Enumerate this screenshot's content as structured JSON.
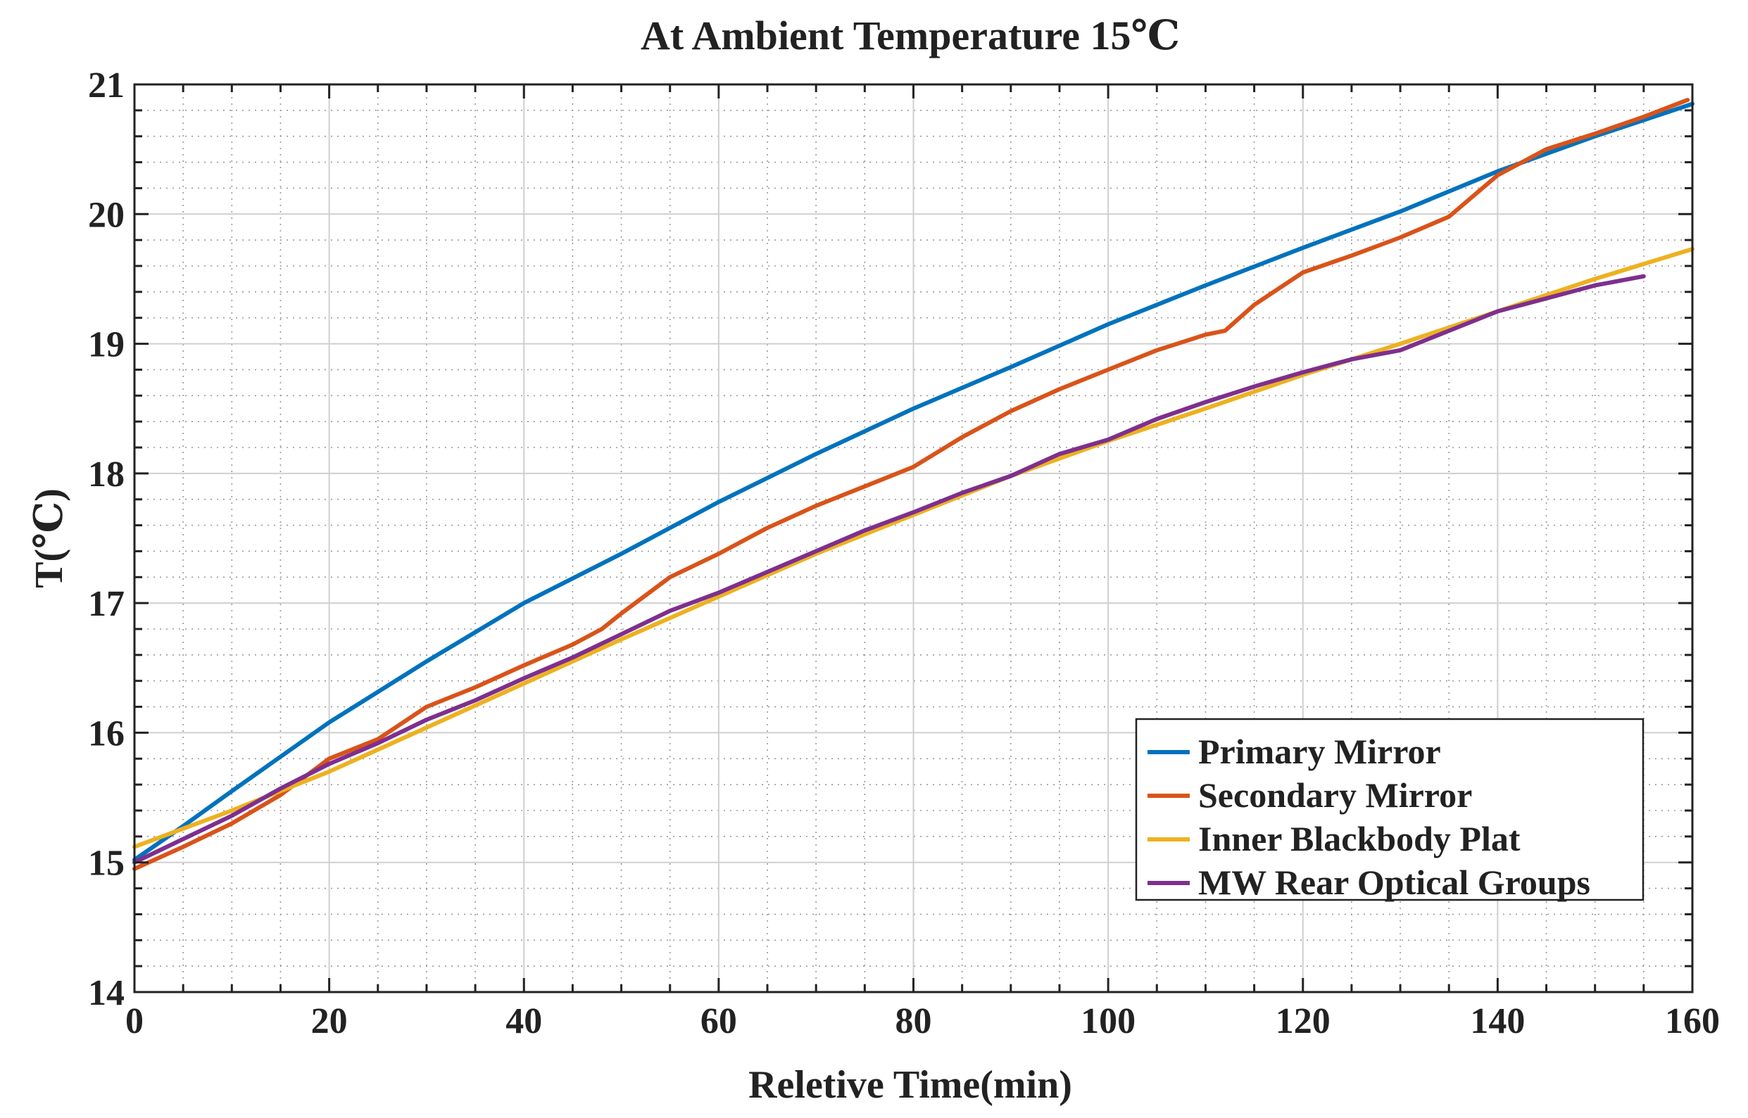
{
  "chart_data": {
    "type": "line",
    "title": "At Ambient Temperature 15℃",
    "xlabel": "Reletive Time(min)",
    "ylabel": "T(℃)",
    "xlim": [
      0,
      160
    ],
    "ylim": [
      14,
      21
    ],
    "xticks": [
      0,
      20,
      40,
      60,
      80,
      100,
      120,
      140,
      160
    ],
    "yticks": [
      14,
      15,
      16,
      17,
      18,
      19,
      20,
      21
    ],
    "x_minor_step": 5,
    "y_minor_step": 0.2,
    "grid": true,
    "legend_position": "bottom-right",
    "series": [
      {
        "name": "Primary Mirror",
        "color": "#0072BD",
        "x": [
          0,
          5,
          10,
          20,
          30,
          40,
          50,
          60,
          70,
          80,
          90,
          100,
          110,
          120,
          130,
          140,
          150,
          160
        ],
        "y": [
          15.02,
          15.28,
          15.55,
          16.08,
          16.55,
          17.0,
          17.38,
          17.78,
          18.15,
          18.5,
          18.82,
          19.15,
          19.45,
          19.74,
          20.02,
          20.33,
          20.6,
          20.85
        ]
      },
      {
        "name": "Secondary Mirror",
        "color": "#D95319",
        "x": [
          0,
          5,
          10,
          15,
          20,
          25,
          30,
          35,
          40,
          45,
          48,
          50,
          55,
          60,
          65,
          70,
          75,
          80,
          85,
          90,
          95,
          100,
          105,
          110,
          112,
          115,
          120,
          125,
          130,
          135,
          140,
          145,
          150,
          155,
          159.5
        ],
        "y": [
          14.95,
          15.12,
          15.3,
          15.52,
          15.8,
          15.95,
          16.2,
          16.35,
          16.52,
          16.68,
          16.8,
          16.92,
          17.2,
          17.38,
          17.58,
          17.75,
          17.9,
          18.05,
          18.28,
          18.48,
          18.65,
          18.8,
          18.95,
          19.07,
          19.1,
          19.3,
          19.55,
          19.68,
          19.82,
          19.98,
          20.3,
          20.5,
          20.62,
          20.75,
          20.88
        ]
      },
      {
        "name": "Inner Blackbody Plat",
        "color": "#EDB120",
        "x": [
          0,
          10,
          20,
          30,
          40,
          50,
          60,
          70,
          80,
          90,
          100,
          110,
          120,
          130,
          140,
          150,
          160
        ],
        "y": [
          15.12,
          15.4,
          15.7,
          16.04,
          16.38,
          16.72,
          17.05,
          17.38,
          17.68,
          17.98,
          18.25,
          18.5,
          18.76,
          19.0,
          19.25,
          19.5,
          19.73
        ]
      },
      {
        "name": "MW Rear Optical Groups",
        "color": "#7E2F8E",
        "x": [
          0,
          5,
          10,
          15,
          20,
          25,
          30,
          35,
          40,
          45,
          50,
          55,
          60,
          65,
          70,
          75,
          80,
          85,
          90,
          95,
          100,
          105,
          110,
          115,
          120,
          125,
          130,
          135,
          140,
          145,
          150,
          155
        ],
        "y": [
          15.0,
          15.18,
          15.36,
          15.57,
          15.76,
          15.92,
          16.1,
          16.25,
          16.42,
          16.58,
          16.76,
          16.94,
          17.08,
          17.24,
          17.4,
          17.56,
          17.7,
          17.85,
          17.98,
          18.15,
          18.26,
          18.42,
          18.55,
          18.67,
          18.78,
          18.88,
          18.95,
          19.1,
          19.25,
          19.35,
          19.45,
          19.52
        ]
      }
    ]
  }
}
